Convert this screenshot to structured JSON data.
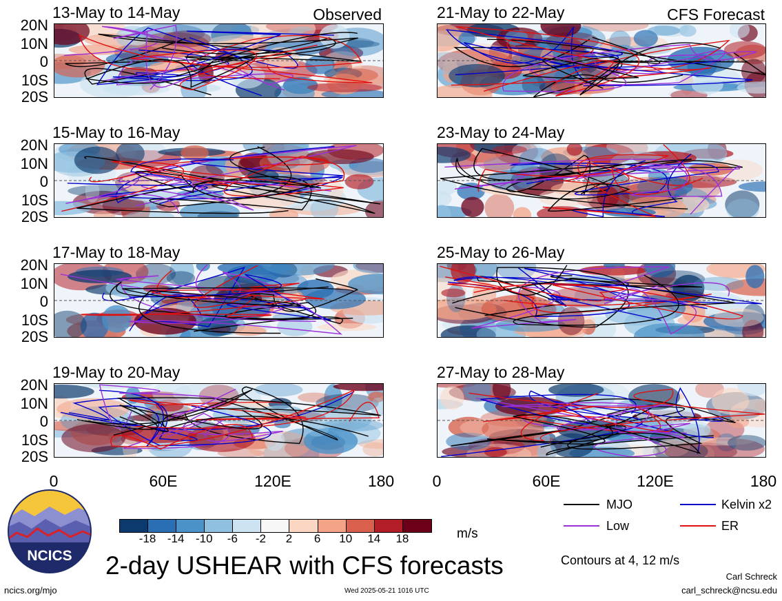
{
  "panels": [
    {
      "id": "p1",
      "title": "13-May to 14-May",
      "tag": "Observed"
    },
    {
      "id": "p2",
      "title": "21-May to 22-May",
      "tag": "CFS Forecast"
    },
    {
      "id": "p3",
      "title": "15-May to 16-May",
      "tag": ""
    },
    {
      "id": "p4",
      "title": "23-May to 24-May",
      "tag": ""
    },
    {
      "id": "p5",
      "title": "17-May to 18-May",
      "tag": ""
    },
    {
      "id": "p6",
      "title": "25-May to 26-May",
      "tag": ""
    },
    {
      "id": "p7",
      "title": "19-May to 20-May",
      "tag": ""
    },
    {
      "id": "p8",
      "title": "27-May to 28-May",
      "tag": ""
    }
  ],
  "y_ticks": [
    "20N",
    "10N",
    "0",
    "10S",
    "20S"
  ],
  "x_ticks": [
    "0",
    "60E",
    "120E",
    "180"
  ],
  "colorbar": {
    "colors": [
      "#0d3a6e",
      "#2a6fb3",
      "#4a92c8",
      "#8fc0e0",
      "#cde3f1",
      "#f7f7f7",
      "#fbd6c3",
      "#f3a487",
      "#d9604c",
      "#b31d27",
      "#6c0019"
    ],
    "ticks": [
      "-18",
      "-14",
      "-10",
      "-6",
      "-2",
      "2",
      "6",
      "10",
      "14",
      "18"
    ],
    "units": "m/s"
  },
  "legend": [
    {
      "label": "MJO",
      "color": "#000000"
    },
    {
      "label": "Kelvin x2",
      "color": "#0000cc"
    },
    {
      "label": "Low",
      "color": "#9b30d9"
    },
    {
      "label": "ER",
      "color": "#e01010"
    }
  ],
  "contour_note": "Contours at 4, 12 m/s",
  "main_title": "2-day USHEAR with CFS forecasts",
  "logo_text": "NCICS",
  "footer": {
    "left": "ncics.org/mjo",
    "center": "Wed 2025-05-21 1016 UTC",
    "author": "Carl Schreck",
    "email": "carl_schreck@ncsu.edu"
  }
}
